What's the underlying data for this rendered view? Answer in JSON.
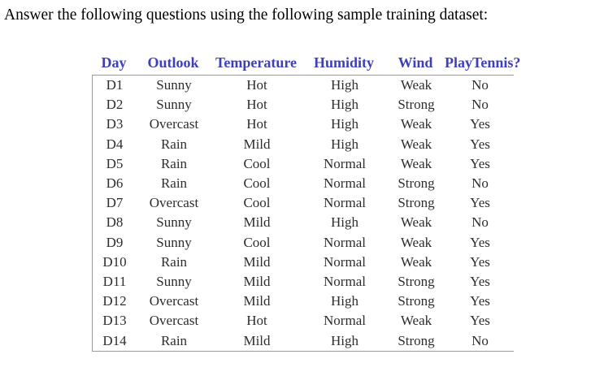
{
  "title": "Answer the following questions using the following sample training dataset:",
  "table": {
    "type": "table",
    "header_color": "#3f3fbe",
    "body_text_color": "#2d2d2d",
    "rule_color": "#9b9b9b",
    "columns": [
      "Day",
      "Outlook",
      "Temperature",
      "Humidity",
      "Wind",
      "PlayTennis?"
    ],
    "rows": [
      [
        "D1",
        "Sunny",
        "Hot",
        "High",
        "Weak",
        "No"
      ],
      [
        "D2",
        "Sunny",
        "Hot",
        "High",
        "Strong",
        "No"
      ],
      [
        "D3",
        "Overcast",
        "Hot",
        "High",
        "Weak",
        "Yes"
      ],
      [
        "D4",
        "Rain",
        "Mild",
        "High",
        "Weak",
        "Yes"
      ],
      [
        "D5",
        "Rain",
        "Cool",
        "Normal",
        "Weak",
        "Yes"
      ],
      [
        "D6",
        "Rain",
        "Cool",
        "Normal",
        "Strong",
        "No"
      ],
      [
        "D7",
        "Overcast",
        "Cool",
        "Normal",
        "Strong",
        "Yes"
      ],
      [
        "D8",
        "Sunny",
        "Mild",
        "High",
        "Weak",
        "No"
      ],
      [
        "D9",
        "Sunny",
        "Cool",
        "Normal",
        "Weak",
        "Yes"
      ],
      [
        "D10",
        "Rain",
        "Mild",
        "Normal",
        "Weak",
        "Yes"
      ],
      [
        "D11",
        "Sunny",
        "Mild",
        "Normal",
        "Strong",
        "Yes"
      ],
      [
        "D12",
        "Overcast",
        "Mild",
        "High",
        "Strong",
        "Yes"
      ],
      [
        "D13",
        "Overcast",
        "Hot",
        "Normal",
        "Weak",
        "Yes"
      ],
      [
        "D14",
        "Rain",
        "Mild",
        "High",
        "Strong",
        "No"
      ]
    ]
  }
}
